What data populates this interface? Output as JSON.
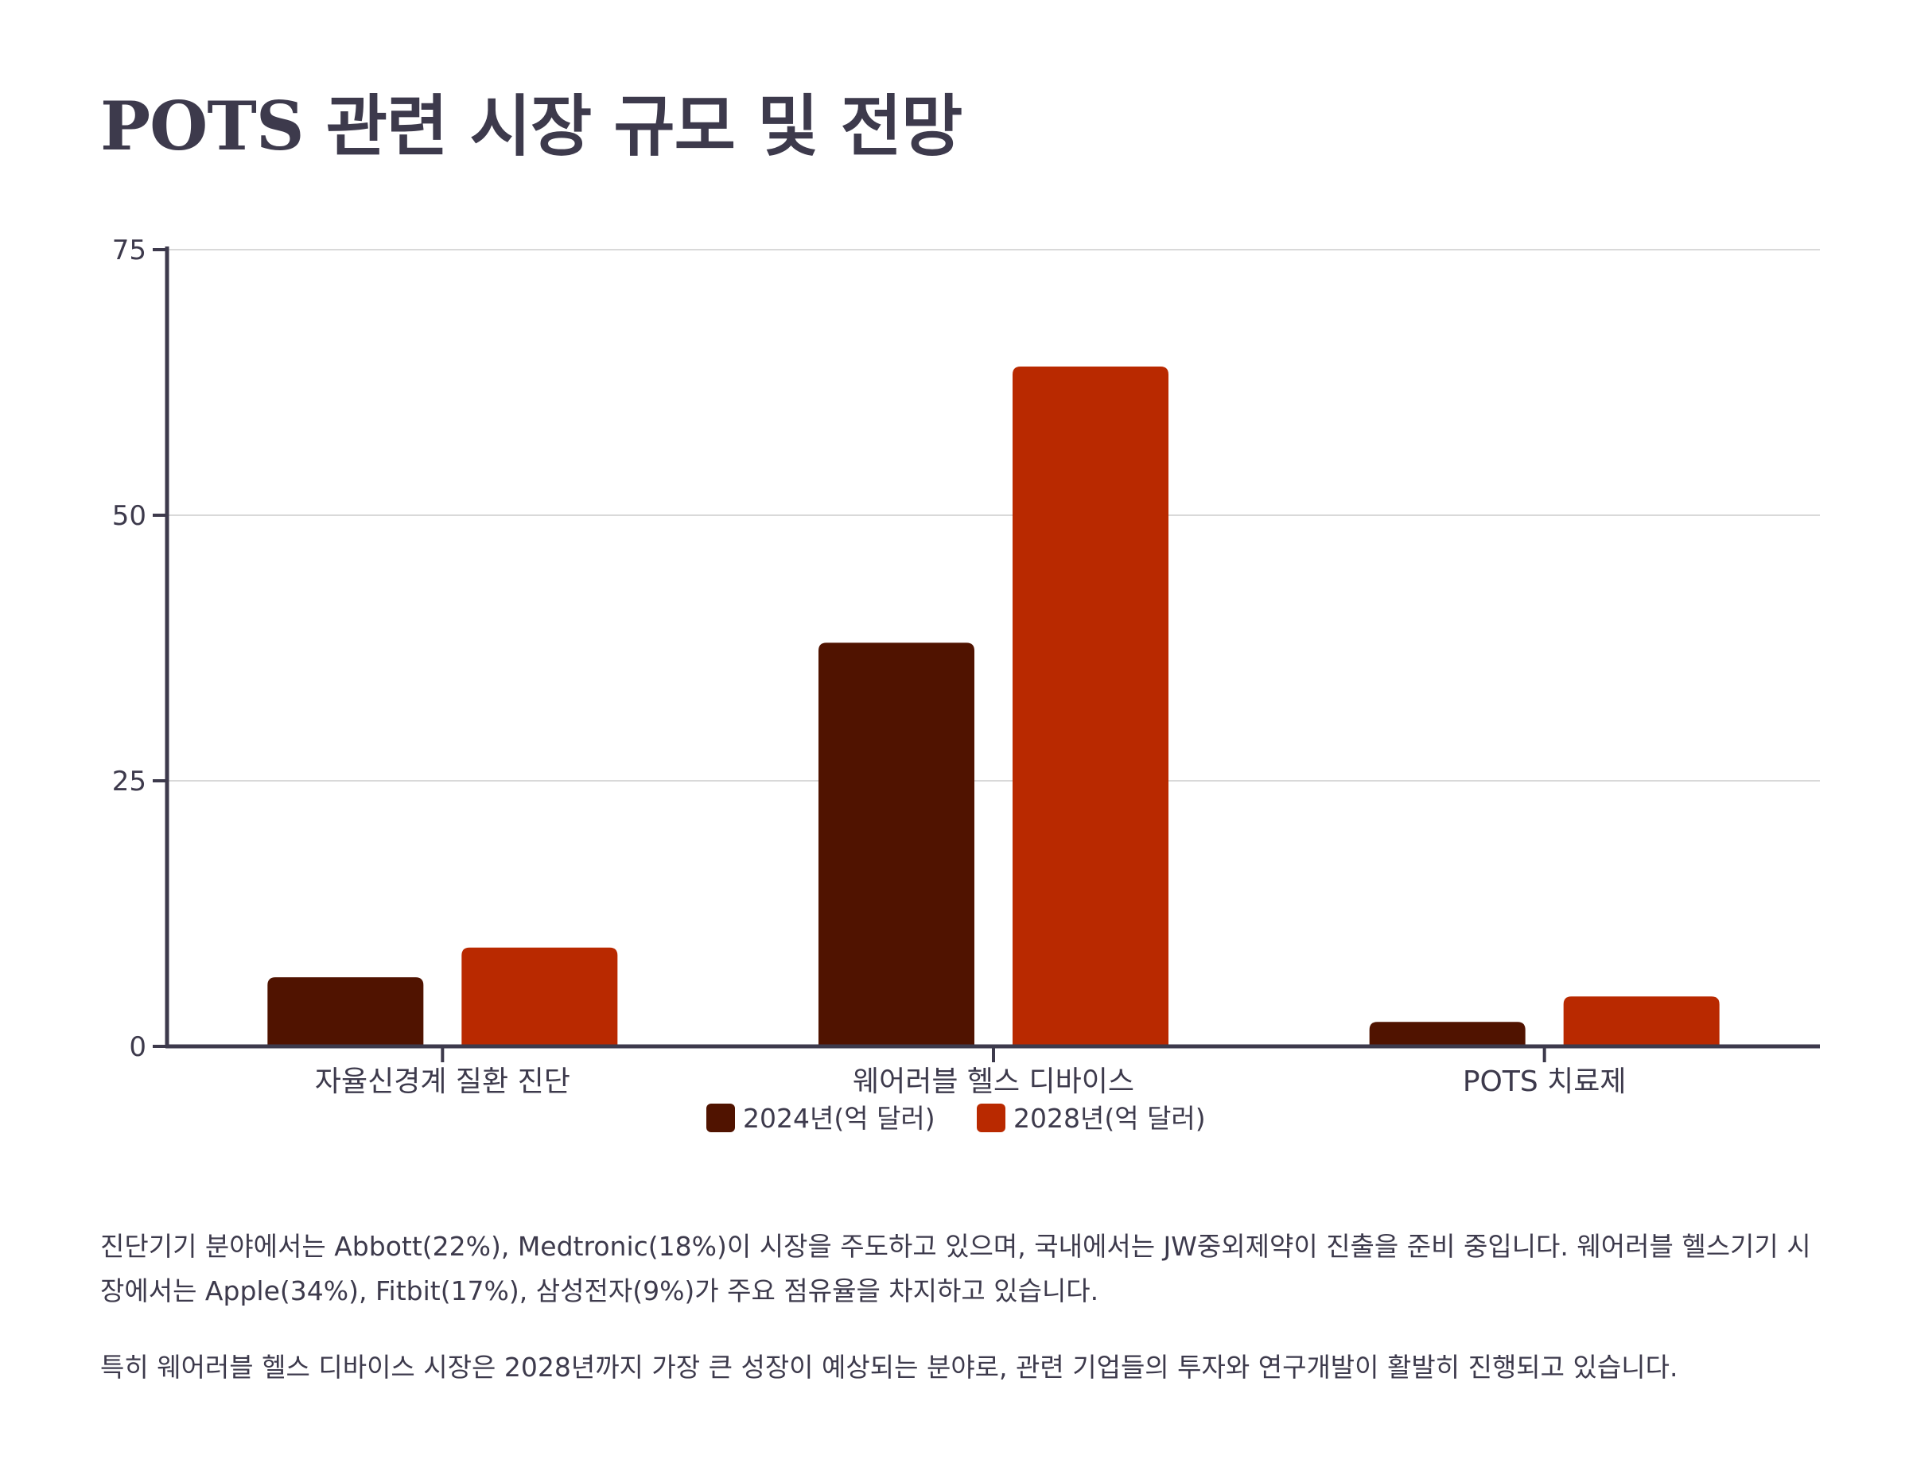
{
  "title": "POTS 관련 시장 규모 및 전망",
  "chart_data": {
    "type": "bar",
    "categories": [
      "자율신경계 질환 진단",
      "웨어러블 헬스 디바이스",
      "POTS 치료제"
    ],
    "series": [
      {
        "name": "2024년(억 달러)",
        "values": [
          6.5,
          38,
          2.3
        ],
        "color": "#501300"
      },
      {
        "name": "2028년(억 달러)",
        "values": [
          9.3,
          64,
          4.7
        ],
        "color": "#b92900"
      }
    ],
    "ylim": [
      0,
      75
    ],
    "yticks": [
      "0",
      "25",
      "50",
      "75"
    ],
    "grid": true,
    "legend_position": "bottom-center"
  },
  "paragraphs": [
    "진단기기 분야에서는 Abbott(22%), Medtronic(18%)이 시장을 주도하고 있으며, 국내에서는 JW중외제약이 진출을 준비 중입니다. 웨어러블 헬스기기 시장에서는 Apple(34%), Fitbit(17%), 삼성전자(9%)가 주요 점유율을 차지하고 있습니다.",
    "특히 웨어러블 헬스 디바이스 시장은 2028년까지 가장 큰 성장이 예상되는 분야로, 관련 기업들의 투자와 연구개발이 활발히 진행되고 있습니다."
  ]
}
